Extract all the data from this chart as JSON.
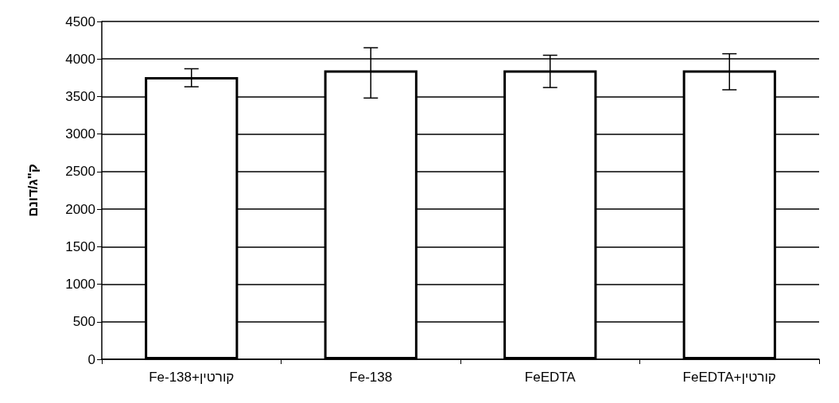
{
  "chart_data": {
    "type": "bar",
    "ylabel": "ק\"ג/דונם",
    "categories": [
      "Fe-138+קורטין",
      "Fe-138",
      "FeEDTA",
      "FeEDTA+קורטין"
    ],
    "values": [
      3760,
      3850,
      3850,
      3850
    ],
    "errors": [
      [
        3630,
        3870
      ],
      [
        3480,
        4150
      ],
      [
        3620,
        4050
      ],
      [
        3590,
        4070
      ]
    ],
    "color": "#ffffff",
    "ylim": [
      0,
      4500
    ],
    "yticks": [
      0,
      500,
      1000,
      1500,
      2000,
      2500,
      3000,
      3500,
      4000,
      4500
    ],
    "grid": "y"
  }
}
